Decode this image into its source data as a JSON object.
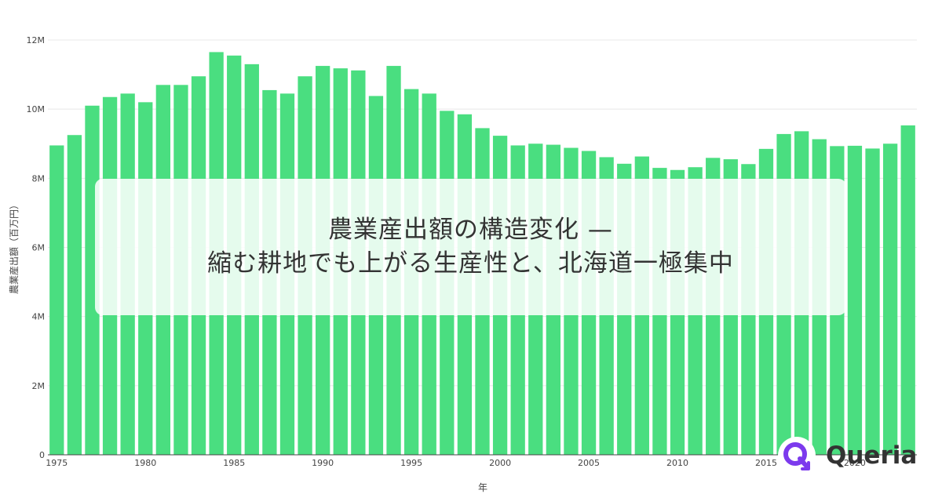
{
  "chart_data": {
    "type": "bar",
    "x": [
      1975,
      1976,
      1977,
      1978,
      1979,
      1980,
      1981,
      1982,
      1983,
      1984,
      1985,
      1986,
      1987,
      1988,
      1989,
      1990,
      1991,
      1992,
      1993,
      1994,
      1995,
      1996,
      1997,
      1998,
      1999,
      2000,
      2001,
      2002,
      2003,
      2004,
      2005,
      2006,
      2007,
      2008,
      2009,
      2010,
      2011,
      2012,
      2013,
      2014,
      2015,
      2016,
      2017,
      2018,
      2019,
      2020,
      2021,
      2022,
      2023
    ],
    "values": [
      8950000,
      9250000,
      10100000,
      10350000,
      10450000,
      10200000,
      10700000,
      10700000,
      10950000,
      11650000,
      11550000,
      11300000,
      10550000,
      10450000,
      10950000,
      11250000,
      11180000,
      11120000,
      10380000,
      11250000,
      10580000,
      10450000,
      9950000,
      9850000,
      9450000,
      9230000,
      8950000,
      9000000,
      8970000,
      8880000,
      8790000,
      8610000,
      8420000,
      8630000,
      8300000,
      8240000,
      8320000,
      8590000,
      8550000,
      8410000,
      8850000,
      9280000,
      9360000,
      9130000,
      8930000,
      8940000,
      8860000,
      9000000,
      9530000
    ],
    "xlabel": "年",
    "ylabel": "農業産出額（百万円）",
    "ylim": [
      0,
      12000000
    ],
    "y_ticks": [
      0,
      2000000,
      4000000,
      6000000,
      8000000,
      10000000,
      12000000
    ],
    "y_tick_labels": [
      "0",
      "2M",
      "4M",
      "6M",
      "8M",
      "10M",
      "12M"
    ],
    "x_ticks": [
      1975,
      1980,
      1985,
      1990,
      1995,
      2000,
      2005,
      2010,
      2015,
      2020
    ],
    "x_tick_labels": [
      "1975",
      "1980",
      "1985",
      "1990",
      "1995",
      "2000",
      "2005",
      "2010",
      "2015",
      "2020"
    ],
    "bar_color": "#4ade80",
    "grid": true,
    "legend": false
  },
  "overlay": {
    "line1": "農業産出額の構造変化 —",
    "line2": "縮む耕地でも上がる生産性と、北海道一極集中"
  },
  "logo": {
    "text": "Queria",
    "icon": "queria-logo-icon",
    "mark_color": "#7c3aed"
  }
}
